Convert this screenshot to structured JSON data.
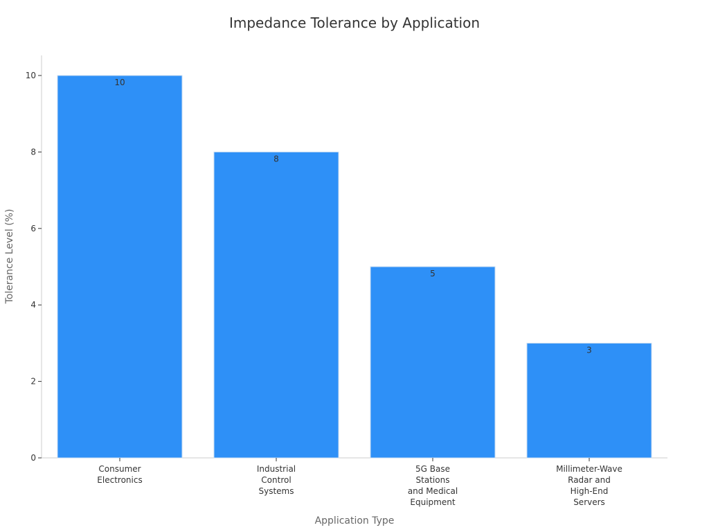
{
  "colors": {
    "bar": "#2e90f7",
    "bar_edge": "#c9ddf0",
    "axis": "#cccccc",
    "text": "#333333",
    "axis_title": "#666666"
  },
  "chart_data": {
    "type": "bar",
    "title": "Impedance Tolerance by Application",
    "xlabel": "Application Type",
    "ylabel": "Tolerance Level (%)",
    "categories": [
      [
        "Consumer",
        "Electronics"
      ],
      [
        "Industrial",
        "Control",
        "Systems"
      ],
      [
        "5G Base",
        "Stations",
        "and Medical",
        "Equipment"
      ],
      [
        "Millimeter-Wave",
        "Radar and",
        "High-End",
        "Servers"
      ]
    ],
    "values": [
      10,
      8,
      5,
      3
    ],
    "value_labels": [
      "10",
      "8",
      "5",
      "3"
    ],
    "ylim": [
      0,
      10.5
    ],
    "yticks": [
      0,
      2,
      4,
      6,
      8,
      10
    ],
    "grid": false,
    "legend": "none"
  }
}
